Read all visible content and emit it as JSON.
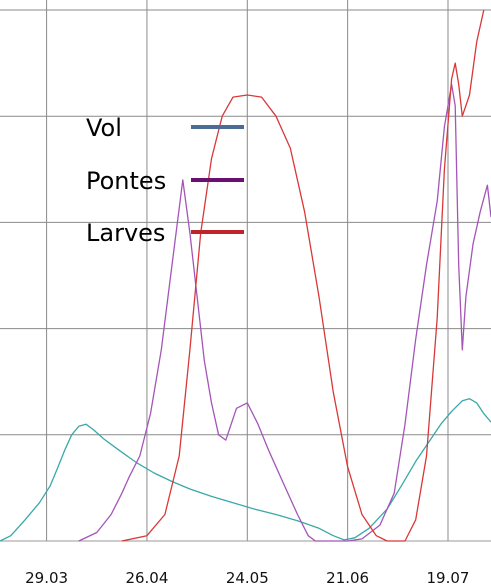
{
  "chart_data": {
    "type": "line",
    "title": "",
    "xlabel": "",
    "ylabel": "",
    "x_axis": {
      "tick_labels": [
        "29.03",
        "26.04",
        "24.05",
        "21.06",
        "19.07"
      ],
      "tick_days": [
        0,
        28,
        56,
        84,
        112
      ],
      "xlim_days": [
        -13,
        124
      ],
      "origin_date": "29.03"
    },
    "y_axis": {
      "ylim": [
        0,
        5
      ],
      "gridlines": [
        1,
        2,
        3,
        4,
        5
      ],
      "tick_labels_shown": false
    },
    "grid": true,
    "legend": {
      "position": "center-left",
      "items": [
        {
          "label": "Vol",
          "color": "#4a6c96"
        },
        {
          "label": "Pontes",
          "color": "#6a1070"
        },
        {
          "label": "Larves",
          "color": "#c0232a"
        }
      ]
    },
    "series": [
      {
        "name": "Vol",
        "color": "#3aa8a8",
        "points": [
          [
            -13,
            0.0
          ],
          [
            -10,
            0.05
          ],
          [
            -6,
            0.2
          ],
          [
            -2,
            0.36
          ],
          [
            1,
            0.52
          ],
          [
            3,
            0.68
          ],
          [
            5,
            0.85
          ],
          [
            7,
            1.0
          ],
          [
            9,
            1.08
          ],
          [
            11,
            1.1
          ],
          [
            13,
            1.05
          ],
          [
            16,
            0.96
          ],
          [
            20,
            0.86
          ],
          [
            25,
            0.74
          ],
          [
            30,
            0.64
          ],
          [
            35,
            0.56
          ],
          [
            40,
            0.49
          ],
          [
            46,
            0.42
          ],
          [
            52,
            0.36
          ],
          [
            58,
            0.3
          ],
          [
            64,
            0.25
          ],
          [
            70,
            0.19
          ],
          [
            76,
            0.12
          ],
          [
            80,
            0.05
          ],
          [
            83,
            0.01
          ],
          [
            86,
            0.03
          ],
          [
            90,
            0.12
          ],
          [
            95,
            0.3
          ],
          [
            99,
            0.52
          ],
          [
            103,
            0.75
          ],
          [
            107,
            0.95
          ],
          [
            110,
            1.1
          ],
          [
            113,
            1.22
          ],
          [
            116,
            1.32
          ],
          [
            118,
            1.34
          ],
          [
            120,
            1.3
          ],
          [
            122,
            1.2
          ],
          [
            124,
            1.12
          ]
        ]
      },
      {
        "name": "Pontes",
        "color": "#a455b8",
        "points": [
          [
            9,
            0.0
          ],
          [
            14,
            0.08
          ],
          [
            18,
            0.25
          ],
          [
            21,
            0.45
          ],
          [
            23,
            0.6
          ],
          [
            26,
            0.8
          ],
          [
            29,
            1.2
          ],
          [
            32,
            1.8
          ],
          [
            35,
            2.6
          ],
          [
            38,
            3.4
          ],
          [
            40,
            2.9
          ],
          [
            42,
            2.3
          ],
          [
            44,
            1.7
          ],
          [
            46,
            1.3
          ],
          [
            48,
            1.0
          ],
          [
            50,
            0.95
          ],
          [
            53,
            1.25
          ],
          [
            56,
            1.3
          ],
          [
            59,
            1.1
          ],
          [
            62,
            0.85
          ],
          [
            66,
            0.55
          ],
          [
            70,
            0.25
          ],
          [
            73,
            0.05
          ],
          [
            75,
            0.0
          ],
          [
            84,
            0.0
          ],
          [
            88,
            0.02
          ],
          [
            93,
            0.15
          ],
          [
            97,
            0.45
          ],
          [
            100,
            1.1
          ],
          [
            103,
            1.9
          ],
          [
            106,
            2.6
          ],
          [
            109,
            3.2
          ],
          [
            111,
            3.9
          ],
          [
            113,
            4.3
          ],
          [
            114,
            4.1
          ],
          [
            115,
            2.6
          ],
          [
            116,
            1.8
          ],
          [
            117,
            2.3
          ],
          [
            119,
            2.8
          ],
          [
            121,
            3.1
          ],
          [
            123,
            3.35
          ],
          [
            124,
            3.05
          ]
        ]
      },
      {
        "name": "Larves",
        "color": "#d83838",
        "points": [
          [
            21,
            0.0
          ],
          [
            28,
            0.05
          ],
          [
            33,
            0.25
          ],
          [
            37,
            0.8
          ],
          [
            40,
            1.8
          ],
          [
            43,
            2.9
          ],
          [
            46,
            3.6
          ],
          [
            49,
            4.0
          ],
          [
            52,
            4.18
          ],
          [
            56,
            4.2
          ],
          [
            60,
            4.18
          ],
          [
            64,
            4.0
          ],
          [
            68,
            3.7
          ],
          [
            72,
            3.1
          ],
          [
            76,
            2.3
          ],
          [
            80,
            1.4
          ],
          [
            84,
            0.7
          ],
          [
            88,
            0.25
          ],
          [
            92,
            0.05
          ],
          [
            95,
            0.0
          ],
          [
            100,
            0.0
          ],
          [
            103,
            0.2
          ],
          [
            106,
            0.8
          ],
          [
            109,
            2.1
          ],
          [
            111,
            3.5
          ],
          [
            113,
            4.35
          ],
          [
            114,
            4.5
          ],
          [
            115,
            4.3
          ],
          [
            116,
            4.0
          ],
          [
            118,
            4.2
          ],
          [
            120,
            4.7
          ],
          [
            122,
            5.0
          ]
        ]
      }
    ]
  }
}
